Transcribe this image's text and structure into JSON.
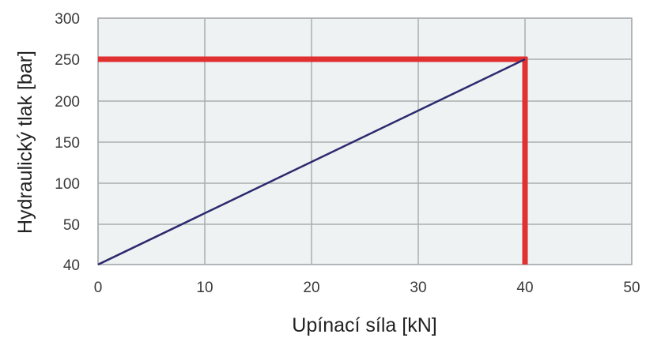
{
  "chart_data": {
    "type": "line",
    "title": "",
    "xlabel": "Upínací síla [kN]",
    "ylabel": "Hydraulický tlak [bar]",
    "xlim": [
      0,
      50
    ],
    "ylim": [
      40,
      300
    ],
    "x_ticks": [
      "0",
      "10",
      "20",
      "30",
      "40",
      "50"
    ],
    "y_ticks": [
      "40",
      "50",
      "100",
      "150",
      "200",
      "250",
      "300"
    ],
    "y_tick_values": [
      40,
      50,
      100,
      150,
      200,
      250,
      300
    ],
    "x_tick_values": [
      0,
      10,
      20,
      30,
      40,
      50
    ],
    "grid": true,
    "series": [
      {
        "points": [
          [
            0,
            40
          ],
          [
            40,
            250
          ]
        ],
        "color": "#2b2a6e"
      }
    ],
    "reference_lines": [
      {
        "orientation": "horizontal",
        "y": 250,
        "x_range": [
          0,
          40
        ],
        "color": "#e03030"
      },
      {
        "orientation": "vertical",
        "x": 40,
        "y_range": [
          40,
          250
        ],
        "color": "#e03030"
      }
    ],
    "plot_background": "#eef2f3",
    "grid_color": "#a9aeb0"
  }
}
